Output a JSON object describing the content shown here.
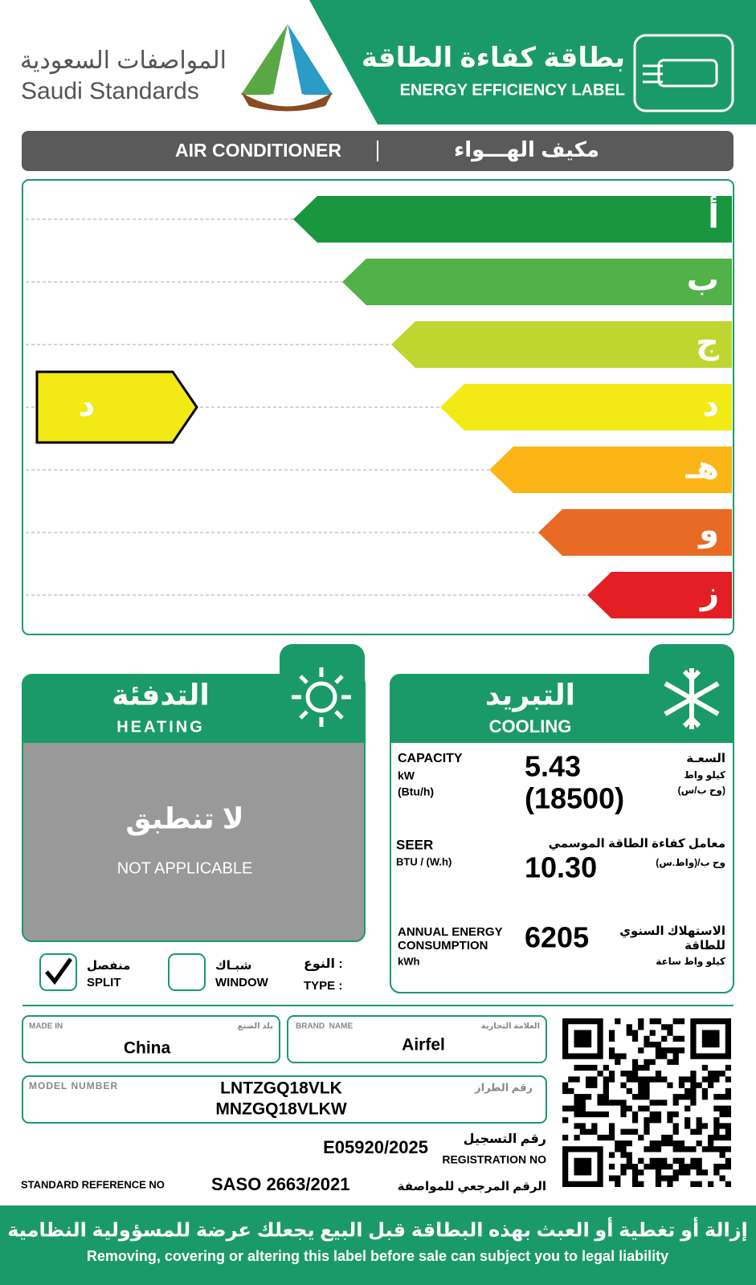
{
  "header": {
    "logo_ar": "المواصفات السعودية",
    "logo_en": "Saudi Standards",
    "saso": "SASO",
    "title_ar": "بطاقة كفاءة الطاقة",
    "title_en": "ENERGY EFFICIENCY LABEL"
  },
  "product": {
    "en": "AIR CONDITIONER",
    "ar": "مكيف الهـــواء"
  },
  "scale": {
    "classes": [
      "أ",
      "ب",
      "ج",
      "د",
      "هـ",
      "و",
      "ز"
    ],
    "rating": "د"
  },
  "heating": {
    "ar": "التدفئة",
    "en": "HEATING",
    "na_ar": "لا تنطبق",
    "na_en": "NOT APPLICABLE"
  },
  "cooling": {
    "ar": "التبريد",
    "en": "COOLING",
    "capacity": {
      "label_en": "CAPACITY",
      "unit_en": [
        "kW",
        "(Btu/h)"
      ],
      "values": [
        "5.43",
        "(18500)"
      ],
      "label_ar": "السعـة",
      "unit_ar": [
        "كيلو واط",
        "(وح ب/س)"
      ]
    },
    "seer": {
      "label_en": "SEER",
      "unit_en": "BTU / (W.h)",
      "value": "10.30",
      "label_ar": "معامل كفاءة الطاقة الموسمي",
      "unit_ar": "وح ب/(واط.س)"
    },
    "annual": {
      "label_en": [
        "ANNUAL ENERGY",
        "CONSUMPTION"
      ],
      "unit_en": "kWh",
      "value": "6205",
      "label_ar": [
        "الاستهلاك السنوي",
        "للطاقة"
      ],
      "unit_ar": "كيلو واط ساعة"
    }
  },
  "type": {
    "ar": "النوع :",
    "en": "TYPE :",
    "options": [
      {
        "ar": "منفصل",
        "en": "SPLIT",
        "checked": true
      },
      {
        "ar": "شبـاك",
        "en": "WINDOW",
        "checked": false
      }
    ]
  },
  "info": {
    "made_in": {
      "en": "MADE IN",
      "ar": "بلد الصنع",
      "value": "China"
    },
    "brand": {
      "en": "BRAND  NAME",
      "ar": "العلامة التجارية",
      "value": "Airfel"
    },
    "model": {
      "en": "MODEL NUMBER",
      "ar": "رقم الطراز",
      "values": [
        "LNTZGQ18VLK",
        "MNZGQ18VLKW"
      ]
    },
    "registration": {
      "ar": "رقم التسجيل",
      "en": "REGISTRATION NO",
      "value": "E05920/2025"
    },
    "standard": {
      "en": "STANDARD REFERENCE NO",
      "value": "SASO 2663/2021",
      "ar": "الرقم المرجعي للمواصفة"
    }
  },
  "footer": {
    "ar": "إزالة أو تغطية أو العبث بهذه البطاقة قبل البيع يجعلك عرضة للمسؤولية النظامية",
    "en": "Removing, covering or altering this label before sale can subject you to legal liability"
  }
}
